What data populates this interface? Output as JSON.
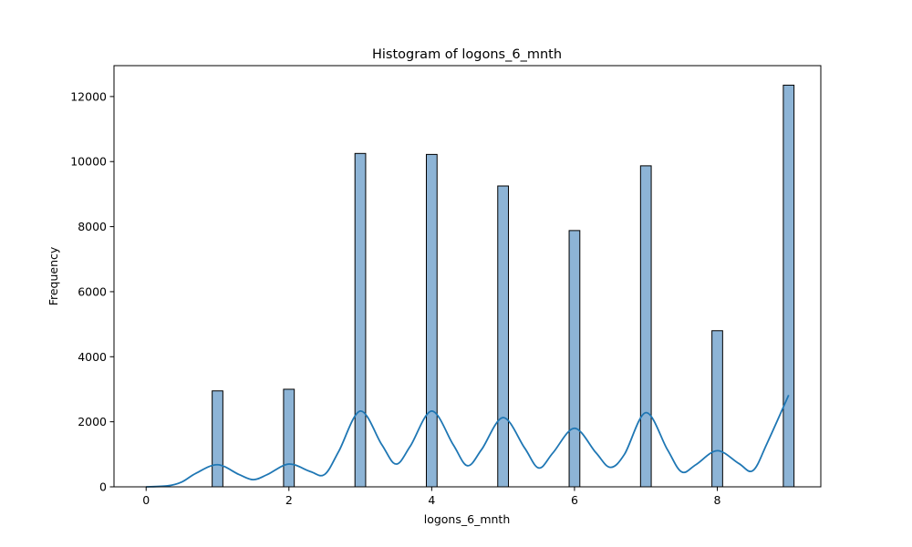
{
  "chart_data": {
    "type": "bar",
    "title": "Histogram of logons_6_mnth",
    "xlabel": "logons_6_mnth",
    "ylabel": "Frequency",
    "xlim": [
      -0.45,
      9.45
    ],
    "ylim": [
      0,
      12950
    ],
    "xticks": [
      0,
      2,
      4,
      6,
      8
    ],
    "yticks": [
      0,
      2000,
      4000,
      6000,
      8000,
      10000,
      12000
    ],
    "bin_width": 0.15,
    "bars": [
      {
        "x": 1,
        "value": 2950
      },
      {
        "x": 2,
        "value": 3000
      },
      {
        "x": 3,
        "value": 10250
      },
      {
        "x": 4,
        "value": 10220
      },
      {
        "x": 5,
        "value": 9250
      },
      {
        "x": 6,
        "value": 7880
      },
      {
        "x": 7,
        "value": 9870
      },
      {
        "x": 8,
        "value": 4800
      },
      {
        "x": 9,
        "value": 12350
      }
    ],
    "kde": {
      "x": [
        0,
        0.3,
        0.5,
        0.7,
        1.0,
        1.3,
        1.5,
        1.7,
        2.0,
        2.3,
        2.5,
        2.7,
        3.0,
        3.3,
        3.5,
        3.7,
        4.0,
        4.3,
        4.5,
        4.7,
        5.0,
        5.3,
        5.5,
        5.7,
        6.0,
        6.3,
        6.5,
        6.7,
        7.0,
        7.3,
        7.5,
        7.7,
        8.0,
        8.3,
        8.5,
        8.7,
        9.0
      ],
      "y": [
        0,
        30,
        150,
        420,
        680,
        380,
        220,
        380,
        700,
        470,
        380,
        1100,
        2330,
        1300,
        700,
        1250,
        2330,
        1300,
        650,
        1150,
        2130,
        1200,
        580,
        1050,
        1800,
        1050,
        600,
        1000,
        2280,
        1150,
        460,
        680,
        1110,
        720,
        500,
        1350,
        2820
      ]
    },
    "colors": {
      "bar_fill": "#8db4d6",
      "bar_edge": "#000000",
      "kde_line": "#1f77b4"
    },
    "grid": false,
    "legend": "none"
  }
}
